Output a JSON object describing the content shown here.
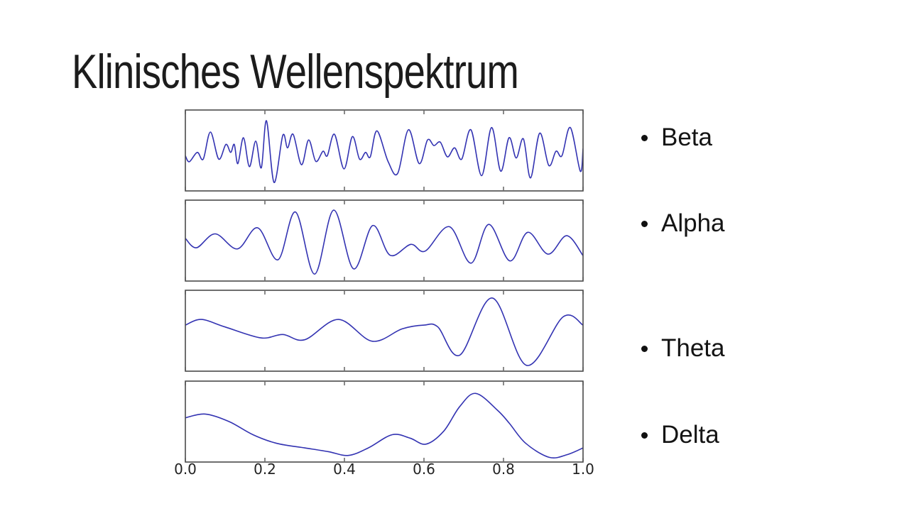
{
  "slide": {
    "title": "Klinisches Wellenspektrum",
    "background": "#ffffff"
  },
  "chart_data": {
    "type": "line",
    "title": "",
    "xlabel": "",
    "ylabel": "",
    "grid": false,
    "legend_position": "none",
    "x_range": [
      0.0,
      1.0
    ],
    "y_range": [
      -1.05,
      1.05
    ],
    "x_ticks": [
      0.0,
      0.2,
      0.4,
      0.6,
      0.8,
      1.0
    ],
    "x_tick_labels": [
      "0.0",
      "0.2",
      "0.4",
      "0.6",
      "0.8",
      "1.0"
    ],
    "line_color": "#3333b2",
    "frame_color": "#4a4a4a",
    "tick_label_color": "#222222",
    "subplots": [
      {
        "name": "Beta",
        "points": [
          [
            0.0,
            -0.14
          ],
          [
            0.01,
            -0.3
          ],
          [
            0.03,
            -0.05
          ],
          [
            0.045,
            -0.23
          ],
          [
            0.063,
            0.49
          ],
          [
            0.084,
            -0.23
          ],
          [
            0.102,
            0.16
          ],
          [
            0.114,
            -0.05
          ],
          [
            0.123,
            0.16
          ],
          [
            0.132,
            -0.35
          ],
          [
            0.146,
            0.34
          ],
          [
            0.161,
            -0.43
          ],
          [
            0.177,
            0.25
          ],
          [
            0.191,
            -0.46
          ],
          [
            0.204,
            0.79
          ],
          [
            0.223,
            -0.85
          ],
          [
            0.245,
            0.4
          ],
          [
            0.257,
            0.07
          ],
          [
            0.271,
            0.43
          ],
          [
            0.292,
            -0.38
          ],
          [
            0.31,
            0.28
          ],
          [
            0.328,
            -0.29
          ],
          [
            0.346,
            -0.02
          ],
          [
            0.357,
            -0.14
          ],
          [
            0.375,
            0.43
          ],
          [
            0.399,
            -0.49
          ],
          [
            0.42,
            0.37
          ],
          [
            0.438,
            -0.23
          ],
          [
            0.453,
            -0.05
          ],
          [
            0.465,
            -0.17
          ],
          [
            0.482,
            0.52
          ],
          [
            0.51,
            -0.3
          ],
          [
            0.534,
            -0.61
          ],
          [
            0.561,
            0.55
          ],
          [
            0.588,
            -0.35
          ],
          [
            0.609,
            0.28
          ],
          [
            0.625,
            0.13
          ],
          [
            0.641,
            0.22
          ],
          [
            0.659,
            -0.17
          ],
          [
            0.677,
            0.07
          ],
          [
            0.695,
            -0.23
          ],
          [
            0.718,
            0.55
          ],
          [
            0.745,
            -0.67
          ],
          [
            0.77,
            0.61
          ],
          [
            0.793,
            -0.55
          ],
          [
            0.814,
            0.34
          ],
          [
            0.832,
            -0.2
          ],
          [
            0.85,
            0.31
          ],
          [
            0.868,
            -0.73
          ],
          [
            0.891,
            0.46
          ],
          [
            0.914,
            -0.4
          ],
          [
            0.932,
            -0.02
          ],
          [
            0.947,
            -0.14
          ],
          [
            0.968,
            0.61
          ],
          [
            0.993,
            -0.55
          ],
          [
            1.0,
            0.05
          ]
        ]
      },
      {
        "name": "Alpha",
        "points": [
          [
            0.0,
            0.06
          ],
          [
            0.028,
            -0.19
          ],
          [
            0.075,
            0.18
          ],
          [
            0.131,
            -0.22
          ],
          [
            0.182,
            0.34
          ],
          [
            0.233,
            -0.51
          ],
          [
            0.277,
            0.76
          ],
          [
            0.325,
            -0.89
          ],
          [
            0.373,
            0.81
          ],
          [
            0.423,
            -0.75
          ],
          [
            0.471,
            0.4
          ],
          [
            0.515,
            -0.39
          ],
          [
            0.567,
            -0.1
          ],
          [
            0.603,
            -0.28
          ],
          [
            0.664,
            0.37
          ],
          [
            0.718,
            -0.6
          ],
          [
            0.763,
            0.43
          ],
          [
            0.816,
            -0.54
          ],
          [
            0.861,
            0.22
          ],
          [
            0.912,
            -0.36
          ],
          [
            0.959,
            0.13
          ],
          [
            1.0,
            -0.4
          ]
        ]
      },
      {
        "name": "Theta",
        "points": [
          [
            0.0,
            0.15
          ],
          [
            0.04,
            0.3
          ],
          [
            0.1,
            0.1
          ],
          [
            0.19,
            -0.19
          ],
          [
            0.245,
            -0.1
          ],
          [
            0.3,
            -0.24
          ],
          [
            0.385,
            0.3
          ],
          [
            0.47,
            -0.28
          ],
          [
            0.545,
            0.05
          ],
          [
            0.6,
            0.15
          ],
          [
            0.635,
            0.1
          ],
          [
            0.69,
            -0.65
          ],
          [
            0.772,
            0.87
          ],
          [
            0.858,
            -0.92
          ],
          [
            0.95,
            0.37
          ],
          [
            1.0,
            0.15
          ]
        ]
      },
      {
        "name": "Delta",
        "points": [
          [
            0.0,
            0.1
          ],
          [
            0.05,
            0.2
          ],
          [
            0.11,
            0.0
          ],
          [
            0.17,
            -0.35
          ],
          [
            0.23,
            -0.58
          ],
          [
            0.3,
            -0.7
          ],
          [
            0.36,
            -0.8
          ],
          [
            0.41,
            -0.9
          ],
          [
            0.46,
            -0.7
          ],
          [
            0.52,
            -0.35
          ],
          [
            0.565,
            -0.44
          ],
          [
            0.605,
            -0.6
          ],
          [
            0.65,
            -0.25
          ],
          [
            0.69,
            0.4
          ],
          [
            0.73,
            0.75
          ],
          [
            0.785,
            0.3
          ],
          [
            0.815,
            -0.05
          ],
          [
            0.856,
            -0.58
          ],
          [
            0.915,
            -0.95
          ],
          [
            0.96,
            -0.88
          ],
          [
            1.0,
            -0.7
          ]
        ]
      }
    ]
  }
}
